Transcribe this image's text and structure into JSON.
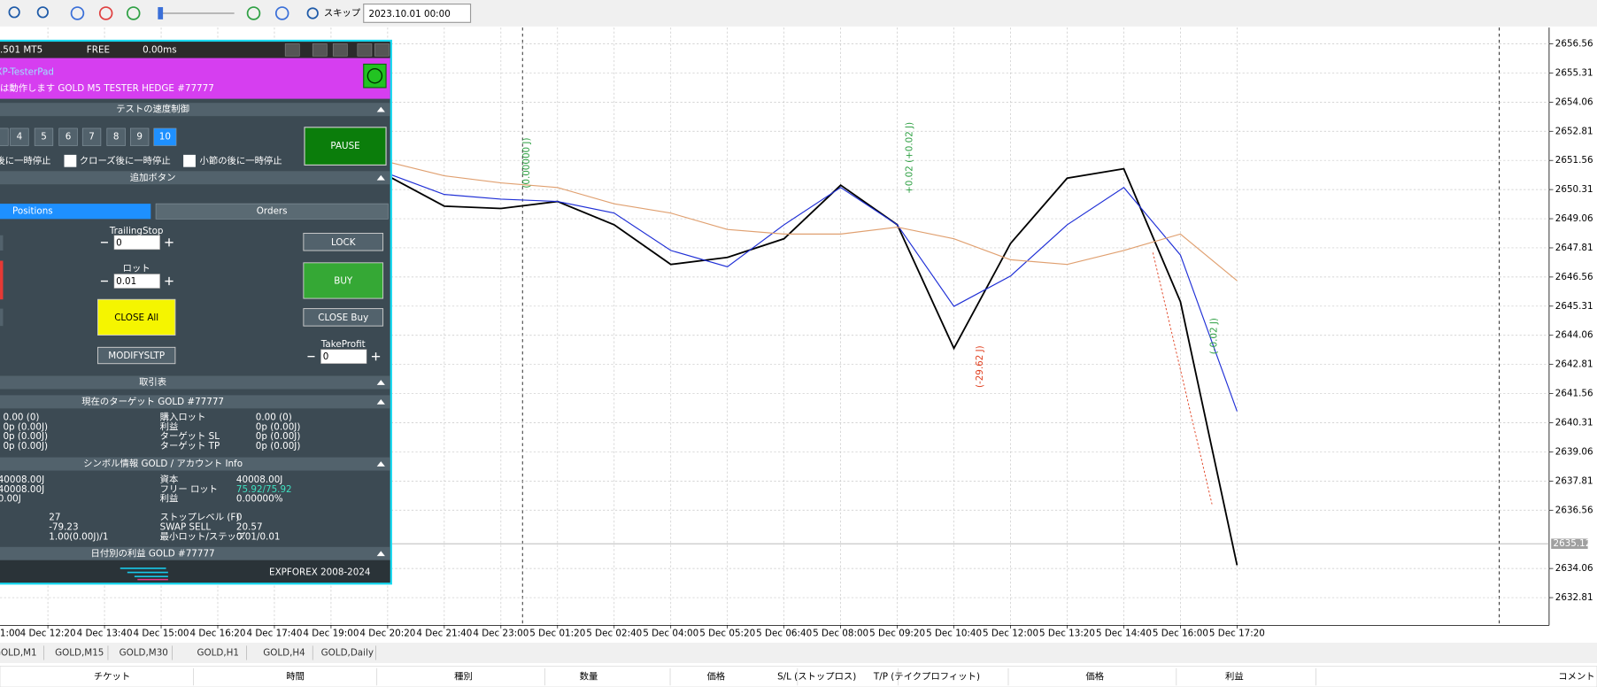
{
  "toolbar": {
    "skip": "スキップ",
    "date": "2023.10.01 00:00"
  },
  "chart_data": {
    "type": "line",
    "categories": [
      "1:00",
      "4 Dec 12:20",
      "4 Dec 13:40",
      "4 Dec 15:00",
      "4 Dec 16:20",
      "4 Dec 17:40",
      "4 Dec 19:00",
      "4 Dec 20:20",
      "4 Dec 21:40",
      "4 Dec 23:00",
      "5 Dec 01:20",
      "5 Dec 02:40",
      "5 Dec 04:00",
      "5 Dec 05:20",
      "5 Dec 06:40",
      "5 Dec 08:00",
      "5 Dec 09:20",
      "5 Dec 10:40",
      "5 Dec 12:00",
      "5 Dec 13:20",
      "5 Dec 14:40",
      "5 Dec 16:00",
      "5 Dec 17:20"
    ],
    "series": [
      {
        "color": "#000000",
        "values": [
          null,
          null,
          null,
          null,
          null,
          null,
          null,
          2650.9,
          2649.6,
          2649.5,
          2649.8,
          2648.8,
          2647.1,
          2647.4,
          2648.2,
          2650.5,
          2648.8,
          2643.5,
          2648.0,
          2650.8,
          2651.2,
          2645.5,
          2634.2
        ]
      },
      {
        "color": "#1f2fd6",
        "values": [
          null,
          null,
          null,
          null,
          null,
          null,
          null,
          2651.0,
          2650.1,
          2649.9,
          2649.8,
          2649.3,
          2647.7,
          2647.0,
          2648.8,
          2650.4,
          2648.8,
          2645.3,
          2646.6,
          2648.8,
          2650.4,
          2647.5,
          2640.8
        ]
      },
      {
        "color": "#e0a070",
        "values": [
          null,
          null,
          null,
          null,
          null,
          null,
          null,
          2651.5,
          2650.9,
          2650.6,
          2650.4,
          2649.7,
          2649.3,
          2648.6,
          2648.4,
          2648.4,
          2648.7,
          2648.2,
          2647.3,
          2647.1,
          2647.7,
          2648.4,
          2646.4
        ]
      }
    ],
    "ylim": [
      2631.62,
      2657.26
    ],
    "yticks": [
      2632.81,
      2634.06,
      2636.56,
      2637.81,
      2639.06,
      2640.31,
      2641.56,
      2642.81,
      2644.06,
      2645.31,
      2646.56,
      2647.81,
      2649.06,
      2650.31,
      2651.56,
      2652.81,
      2654.06,
      2655.31,
      2656.56
    ],
    "grid": true,
    "current_price": 2635.12,
    "annotations": [
      "+0.02 (+0.02 J)",
      "(0.00000 J)",
      "(-29.62 J)",
      "(-0.02 J)"
    ]
  },
  "panel": {
    "version": ".501 MT5",
    "mode": "FREE",
    "latency": "0.00ms",
    "name": "XP-TesterPad",
    "status": "は動作します GOLD M5 TESTER HEDGE #77777",
    "speed_header": "テストの速度制御",
    "speed_buttons": [
      "4",
      "5",
      "6",
      "7",
      "8",
      "9",
      "10"
    ],
    "pause": "PAUSE",
    "checks": [
      "後に一時停止",
      "クローズ後に一時停止",
      "小節の後に一時停止"
    ],
    "extra_header": "追加ボタン",
    "tabs": [
      "Positions",
      "Orders"
    ],
    "trailing_label": "TrailingStop",
    "trailing_value": "0",
    "lock": "LOCK",
    "lot_label": "ロット",
    "lot_value": "0.01",
    "buy": "BUY",
    "close_all": "CLOSE All",
    "close_buy": "CLOSE Buy",
    "modify": "MODIFYSLTP",
    "tp_label": "TakeProfit",
    "tp_value": "0",
    "trade_header": "取引表",
    "target_header": "現在のターゲット GOLD #77777",
    "target_rows": [
      [
        "0.00 (0)",
        "購入ロット",
        "0.00 (0)"
      ],
      [
        "0p (0.00J)",
        "利益",
        "0p (0.00J)"
      ],
      [
        "0p (0.00J)",
        "ターゲット SL",
        "0p (0.00J)"
      ],
      [
        "0p (0.00J)",
        "ターゲット TP",
        "0p (0.00J)"
      ]
    ],
    "symbol_header": "シンボル情報 GOLD / アカウント Info",
    "symbol_rows": [
      [
        "40008.00J",
        "資本",
        "40008.00J"
      ],
      [
        "40008.00J",
        "フリー ロット",
        "75.92/75.92"
      ],
      [
        "0.00J",
        "利益",
        "0.00000%"
      ],
      [
        "27",
        "ストップレベル (F)",
        "0"
      ],
      [
        "-79.23",
        "SWAP SELL",
        "20.57"
      ],
      [
        "1.00(0.00J)/1",
        "最小ロット/ステップ",
        "0.01/0.01"
      ]
    ],
    "daily_header": "日付別の利益 GOLD #77777",
    "footer": "EXPFOREX 2008-2024"
  },
  "tabs": [
    "GOLD,M1",
    "GOLD,M15",
    "GOLD,M30",
    "GOLD,H1",
    "GOLD,H4",
    "GOLD,Daily"
  ],
  "table_header": [
    "チケット",
    "時間",
    "種別",
    "数量",
    "価格",
    "S/L (ストップロス)",
    "T/P (テイクプロフィット)",
    "価格",
    "利益",
    "コメント"
  ]
}
